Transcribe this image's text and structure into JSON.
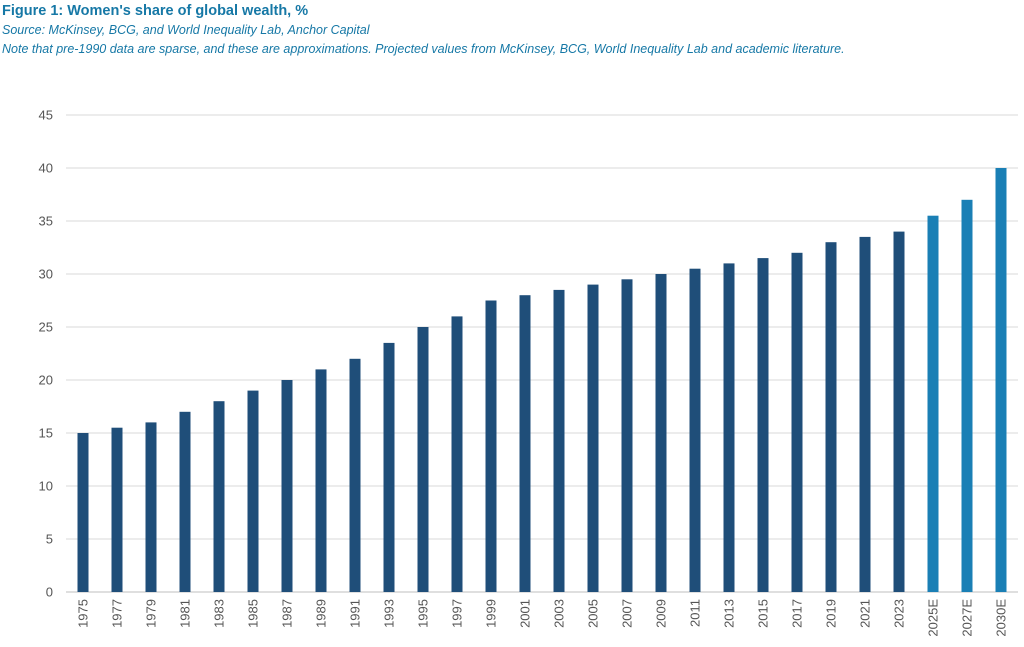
{
  "header": {
    "title": "Figure 1: Women's share of global wealth, %",
    "source": "Source: McKinsey, BCG, and World Inequality Lab, Anchor Capital",
    "note": "Note that pre-1990 data are sparse, and these are approximations. Projected values from McKinsey, BCG, World Inequality Lab and academic literature."
  },
  "chart_data": {
    "type": "bar",
    "title": "Figure 1: Women's share of global wealth, %",
    "xlabel": "",
    "ylabel": "",
    "ylim": [
      0,
      45
    ],
    "yticks": [
      0,
      5,
      10,
      15,
      20,
      25,
      30,
      35,
      40,
      45
    ],
    "grid": true,
    "legend": "none",
    "categories": [
      "1975",
      "1977",
      "1979",
      "1981",
      "1983",
      "1985",
      "1987",
      "1989",
      "1991",
      "1993",
      "1995",
      "1997",
      "1999",
      "2001",
      "2003",
      "2005",
      "2007",
      "2009",
      "2011",
      "2013",
      "2015",
      "2017",
      "2019",
      "2021",
      "2023",
      "2025E",
      "2027E",
      "2030E"
    ],
    "values": [
      15,
      15.5,
      16,
      17,
      18,
      19,
      20,
      21,
      22,
      23.5,
      25,
      26,
      27.5,
      28,
      28.5,
      29,
      29.5,
      30,
      30.5,
      31,
      31.5,
      32,
      33,
      33.5,
      34,
      35.5,
      37,
      40
    ],
    "colors": {
      "actual": "#1f4e79",
      "projected": "#1a7fb5",
      "grid": "#d9d9d9",
      "axis": "#bfbfbf"
    }
  }
}
